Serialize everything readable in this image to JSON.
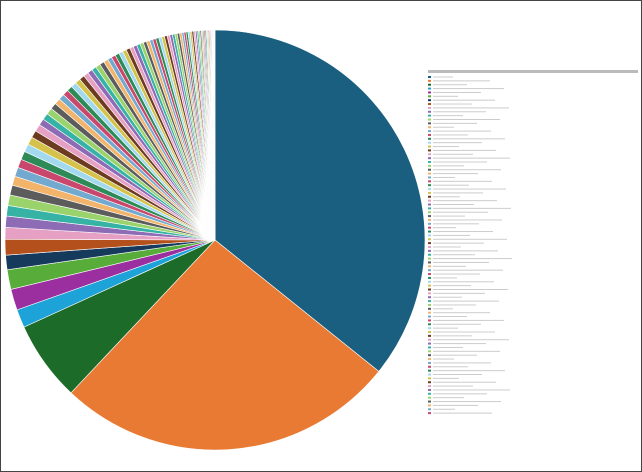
{
  "chart_data": {
    "type": "pie",
    "categories": [
      null,
      null,
      null,
      null,
      null,
      null,
      null,
      null,
      null,
      null,
      null,
      null,
      null,
      null,
      null,
      null,
      null,
      null,
      null,
      null,
      null,
      null,
      null,
      null,
      null,
      null,
      null,
      null,
      null,
      null,
      null,
      null,
      null,
      null,
      null,
      null,
      null,
      null,
      null,
      null,
      null,
      null,
      null,
      null,
      null,
      null,
      null,
      null,
      null,
      null,
      null,
      null,
      null,
      null,
      null,
      null,
      null,
      null,
      null,
      null,
      null,
      null,
      null,
      null,
      null,
      null,
      null,
      null,
      null,
      null,
      null,
      null,
      null,
      null,
      null,
      null,
      null,
      null,
      null,
      null,
      null,
      null,
      null,
      null,
      null,
      null,
      null,
      null
    ],
    "values": [
      35.4,
      26,
      6.1,
      1.4,
      1.6,
      1.5,
      1.1,
      1.2,
      0.9,
      0.85,
      0.8,
      0.8,
      0.75,
      0.7,
      0.7,
      0.65,
      0.65,
      0.6,
      0.6,
      0.55,
      0.55,
      0.5,
      0.5,
      0.5,
      0.48,
      0.46,
      0.45,
      0.44,
      0.42,
      0.42,
      0.4,
      0.4,
      0.38,
      0.38,
      0.36,
      0.36,
      0.35,
      0.34,
      0.33,
      0.32,
      0.32,
      0.3,
      0.3,
      0.3,
      0.28,
      0.28,
      0.27,
      0.26,
      0.25,
      0.25,
      0.24,
      0.24,
      0.23,
      0.22,
      0.22,
      0.21,
      0.2,
      0.2,
      0.19,
      0.18,
      0.18,
      0.17,
      0.16,
      0.16,
      0.15,
      0.15,
      0.14,
      0.14,
      0.13,
      0.12,
      0.12,
      0.11,
      0.1,
      0.1,
      0.1,
      0.09,
      0.09,
      0.08,
      0.08,
      0.07,
      0.07,
      0.06,
      0.06,
      0.05,
      0.05,
      0.05,
      0.04,
      0.04
    ],
    "colors": [
      "#1b5f80",
      "#e97a33",
      "#1d6b28",
      "#1ea3d8",
      "#9b2f9f",
      "#58ad3a",
      "#163a5c",
      "#b3501c",
      "#e6a0c4",
      "#8e6bb5",
      "#37b3a5",
      "#9ad26b",
      "#5c5c5c",
      "#f2b36a",
      "#74a9cf",
      "#c9476d",
      "#2e8b57",
      "#a3d9ef",
      "#d4c24a",
      "#6d3b1f"
    ],
    "legend": "right"
  }
}
